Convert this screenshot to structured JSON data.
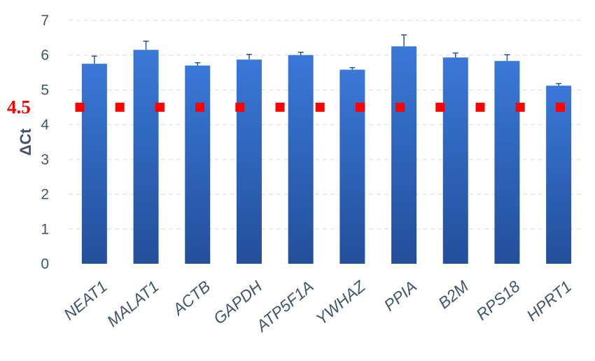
{
  "chart_data": {
    "type": "bar",
    "ylabel": "ΔCt",
    "ylim": [
      0,
      7
    ],
    "yticks": [
      "0",
      "1",
      "2",
      "3",
      "4",
      "5",
      "6",
      "7"
    ],
    "grid": true,
    "categories": [
      "NEAT1",
      "MALAT1",
      "ACTB",
      "GAPDH",
      "ATP5F1A",
      "YWHAZ",
      "PPIA",
      "B2M",
      "RPS18",
      "HPRT1"
    ],
    "values": [
      5.75,
      6.15,
      5.7,
      5.87,
      6.0,
      5.58,
      6.25,
      5.93,
      5.83,
      5.12
    ],
    "errors": [
      0.22,
      0.25,
      0.08,
      0.15,
      0.08,
      0.06,
      0.33,
      0.13,
      0.18,
      0.06
    ],
    "threshold": {
      "value": 4.5,
      "label": "4.5",
      "color": "#ff0000",
      "style": "dashed-squares"
    },
    "bar_color_top": "#3a78d8",
    "bar_color_bottom": "#234f9a"
  }
}
